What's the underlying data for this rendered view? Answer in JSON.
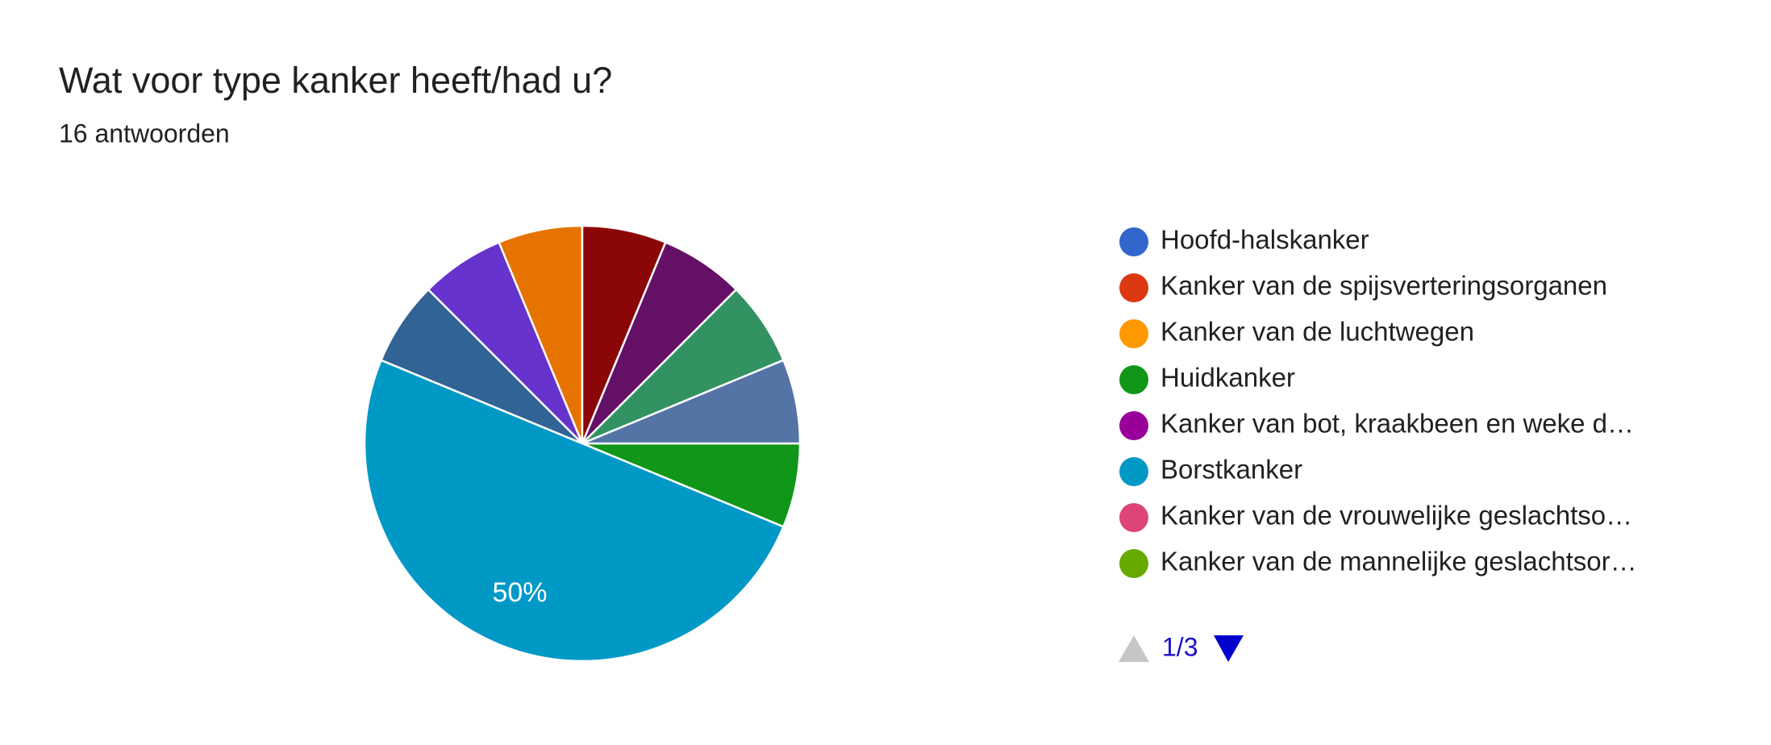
{
  "chart_data": {
    "type": "pie",
    "title": "Wat voor type kanker heeft/had u?",
    "subtitle": "16 antwoorden",
    "categories": [
      "Hoofd-halskanker",
      "Kanker van de spijsverteringsorganen",
      "Kanker van de luchtwegen",
      "Huidkanker",
      "Kanker van bot, kraakbeen en weke d…",
      "Borstkanker",
      "Kanker van de vrouwelijke geslachtso…",
      "Kanker van de mannelijke geslachtsor…",
      null,
      null,
      null,
      null,
      null,
      null,
      null,
      null,
      null,
      null,
      null
    ],
    "values": [
      0,
      0,
      0,
      6.25,
      0,
      50,
      0,
      0,
      0,
      6.25,
      0,
      0,
      0,
      6.25,
      6.25,
      6.25,
      6.25,
      6.25,
      6.25
    ],
    "value_labels": [
      null,
      null,
      null,
      null,
      null,
      "50%",
      null,
      null,
      null,
      null,
      null,
      null,
      null,
      null,
      null,
      null,
      null,
      null,
      null
    ],
    "colors": [
      "#3366cc",
      "#dc3912",
      "#ff9900",
      "#109618",
      "#990099",
      "#0099c6",
      "#dd4477",
      "#66aa00",
      "#b82e2e",
      "#316395",
      "#994499",
      "#22aa99",
      "#aaaa11",
      "#6633cc",
      "#e67300",
      "#8b0707",
      "#651067",
      "#329262",
      "#5574a6"
    ],
    "legend_page": "1/3"
  }
}
